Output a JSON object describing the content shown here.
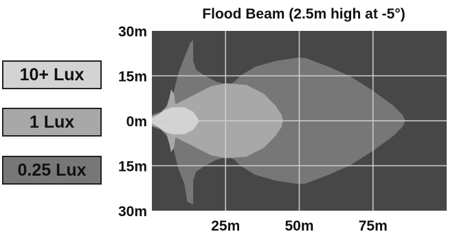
{
  "chart_data": {
    "type": "heatmap",
    "title": "Flood Beam (2.5m high at -5°)",
    "xlabel": "",
    "ylabel": "",
    "xlim": [
      0,
      100
    ],
    "ylim": [
      -30,
      30
    ],
    "x_ticks": [
      {
        "value": 25,
        "label": "25m"
      },
      {
        "value": 50,
        "label": "50m"
      },
      {
        "value": 75,
        "label": "75m"
      }
    ],
    "y_ticks": [
      {
        "value": 30,
        "label": "30m"
      },
      {
        "value": 15,
        "label": "15m"
      },
      {
        "value": 0,
        "label": "0m"
      },
      {
        "value": -15,
        "label": "15m"
      },
      {
        "value": -30,
        "label": "30m"
      }
    ],
    "grid": true,
    "legend_placement": "left",
    "background_color": "#474747",
    "grid_color": "#cfcfcf",
    "series": [
      {
        "name": "0.25 Lux",
        "color": "#777777",
        "contour": [
          [
            0,
            2
          ],
          [
            3,
            3
          ],
          [
            5,
            5
          ],
          [
            7,
            8
          ],
          [
            8,
            12
          ],
          [
            9,
            16
          ],
          [
            11,
            21
          ],
          [
            13,
            26
          ],
          [
            14,
            27
          ],
          [
            14,
            25
          ],
          [
            14,
            20
          ],
          [
            15,
            17
          ],
          [
            18,
            15
          ],
          [
            22,
            13
          ],
          [
            26,
            12
          ],
          [
            28,
            13
          ],
          [
            30,
            15
          ],
          [
            35,
            18
          ],
          [
            42,
            20
          ],
          [
            49,
            21
          ],
          [
            52,
            21
          ],
          [
            60,
            18
          ],
          [
            67,
            15
          ],
          [
            75,
            10
          ],
          [
            82,
            5
          ],
          [
            85,
            2
          ],
          [
            86,
            0
          ],
          [
            85,
            -2
          ],
          [
            82,
            -5
          ],
          [
            75,
            -10
          ],
          [
            67,
            -15
          ],
          [
            60,
            -18
          ],
          [
            52,
            -21
          ],
          [
            49,
            -21
          ],
          [
            42,
            -20
          ],
          [
            35,
            -18
          ],
          [
            30,
            -15
          ],
          [
            28,
            -13
          ],
          [
            26,
            -12
          ],
          [
            22,
            -13
          ],
          [
            18,
            -15
          ],
          [
            15,
            -17
          ],
          [
            14,
            -20
          ],
          [
            14,
            -25
          ],
          [
            14,
            -28
          ],
          [
            12,
            -27
          ],
          [
            11,
            -21
          ],
          [
            9,
            -16
          ],
          [
            8,
            -12
          ],
          [
            7,
            -8
          ],
          [
            5,
            -5
          ],
          [
            3,
            -3
          ],
          [
            0,
            -2
          ]
        ]
      },
      {
        "name": "1 Lux",
        "color": "#a8a8a8",
        "contour": [
          [
            0,
            1.5
          ],
          [
            3,
            2.5
          ],
          [
            5,
            4.5
          ],
          [
            6,
            8
          ],
          [
            6.5,
            10.5
          ],
          [
            7.5,
            9
          ],
          [
            8,
            5.5
          ],
          [
            10,
            6.5
          ],
          [
            15,
            9
          ],
          [
            20,
            11.5
          ],
          [
            25,
            12.5
          ],
          [
            32,
            12
          ],
          [
            38,
            9
          ],
          [
            42,
            5
          ],
          [
            44,
            2
          ],
          [
            44.5,
            0
          ],
          [
            44,
            -2
          ],
          [
            42,
            -5
          ],
          [
            38,
            -9
          ],
          [
            32,
            -12
          ],
          [
            25,
            -12.5
          ],
          [
            20,
            -11.5
          ],
          [
            15,
            -9
          ],
          [
            10,
            -6.5
          ],
          [
            8,
            -5.5
          ],
          [
            7.5,
            -9
          ],
          [
            6.5,
            -10.5
          ],
          [
            6,
            -8
          ],
          [
            5,
            -4.5
          ],
          [
            3,
            -2.5
          ],
          [
            0,
            -1.5
          ]
        ]
      },
      {
        "name": "10+ Lux",
        "color": "#d3d3d3",
        "contour": [
          [
            0,
            0.8
          ],
          [
            2,
            2
          ],
          [
            4,
            3.5
          ],
          [
            7,
            4.5
          ],
          [
            11,
            4.5
          ],
          [
            14,
            3
          ],
          [
            15.5,
            1
          ],
          [
            16,
            0
          ],
          [
            15.5,
            -1
          ],
          [
            14,
            -3
          ],
          [
            11,
            -4.5
          ],
          [
            7,
            -4.5
          ],
          [
            4,
            -3.5
          ],
          [
            2,
            -2
          ],
          [
            0,
            -0.8
          ]
        ]
      }
    ],
    "legend": [
      {
        "label": "10+ Lux",
        "color": "#d3d3d3"
      },
      {
        "label": "1 Lux",
        "color": "#a8a8a8"
      },
      {
        "label": "0.25 Lux",
        "color": "#777777"
      }
    ]
  }
}
